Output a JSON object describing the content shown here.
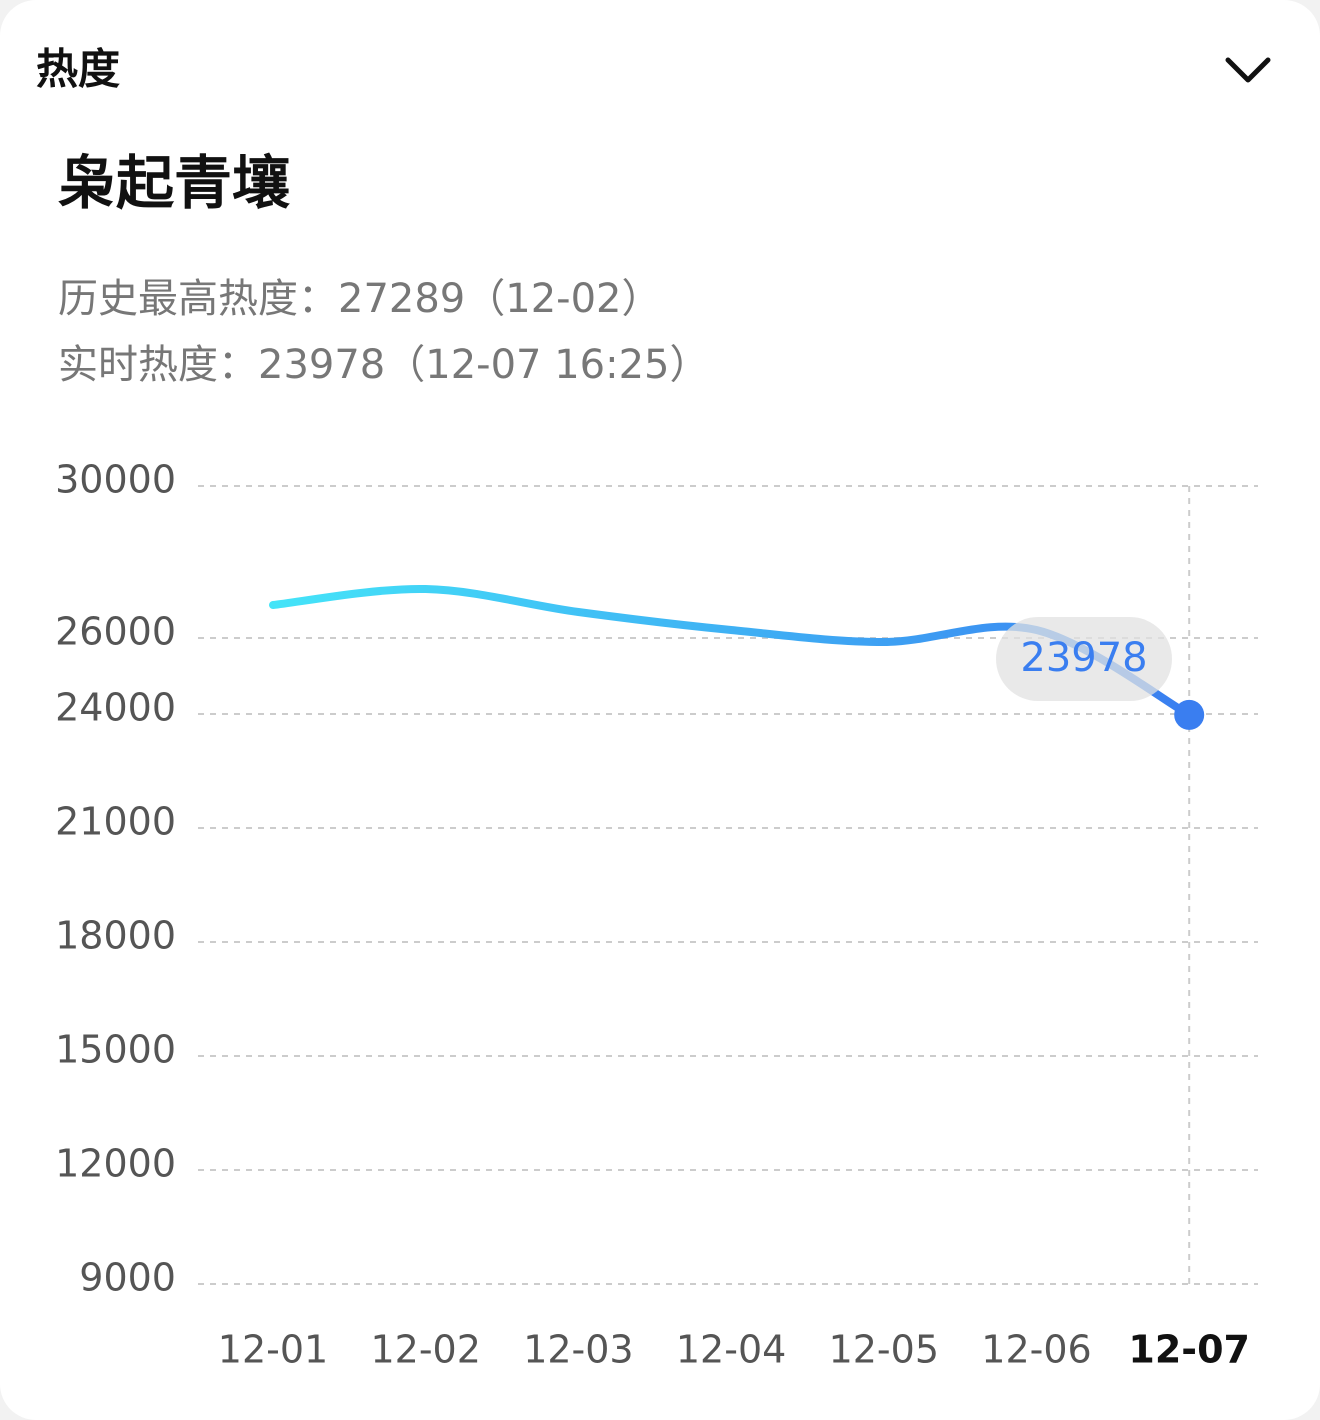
{
  "header": {
    "title": "热度"
  },
  "topic": "枭起青壤",
  "stats": [
    "历史最高热度：27289（12-02）",
    "实时热度：23978（12-07 16:25）"
  ],
  "chart_data": {
    "type": "line",
    "categories": [
      "12-01",
      "12-02",
      "12-03",
      "12-04",
      "12-05",
      "12-06",
      "12-07"
    ],
    "series": [
      {
        "name": "热度",
        "color": "#3a7ef0",
        "values": [
          26868,
          27289,
          26684,
          26210,
          25895,
          26210,
          23978
        ]
      }
    ],
    "ylim": [
      9000,
      30000
    ],
    "yticks": [
      9000,
      12000,
      15000,
      18000,
      21000,
      24000,
      26000,
      30000
    ],
    "grid": true
  }
}
